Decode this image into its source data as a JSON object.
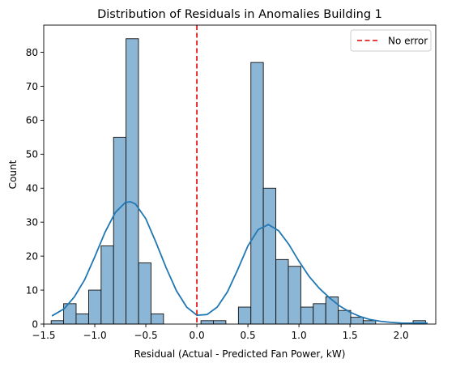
{
  "chart_data": {
    "type": "bar",
    "title": "Distribution of Residuals in Anomalies Building 1",
    "xlabel": "Residual (Actual - Predicted Fan Power, kW)",
    "ylabel": "Count",
    "xlim": [
      -1.5,
      2.34
    ],
    "ylim": [
      0,
      88
    ],
    "xticks": [
      -1.5,
      -1.0,
      -0.5,
      0.0,
      0.5,
      1.0,
      1.5,
      2.0
    ],
    "xtick_labels": [
      "−1.5",
      "−1.0",
      "−0.5",
      "0.0",
      "0.5",
      "1.0",
      "1.5",
      "2.0"
    ],
    "yticks": [
      0,
      10,
      20,
      30,
      40,
      50,
      60,
      70,
      80
    ],
    "ytick_labels": [
      "0",
      "10",
      "20",
      "30",
      "40",
      "50",
      "60",
      "70",
      "80"
    ],
    "bin_width": 0.1222,
    "bins": [
      {
        "x0": -1.427,
        "count": 1
      },
      {
        "x0": -1.305,
        "count": 6
      },
      {
        "x0": -1.183,
        "count": 3
      },
      {
        "x0": -1.06,
        "count": 10
      },
      {
        "x0": -0.938,
        "count": 23
      },
      {
        "x0": -0.816,
        "count": 55
      },
      {
        "x0": -0.694,
        "count": 84
      },
      {
        "x0": -0.571,
        "count": 18
      },
      {
        "x0": -0.449,
        "count": 3
      },
      {
        "x0": 0.04,
        "count": 1
      },
      {
        "x0": 0.162,
        "count": 1
      },
      {
        "x0": 0.407,
        "count": 5
      },
      {
        "x0": 0.529,
        "count": 77
      },
      {
        "x0": 0.651,
        "count": 40
      },
      {
        "x0": 0.774,
        "count": 19
      },
      {
        "x0": 0.896,
        "count": 17
      },
      {
        "x0": 1.018,
        "count": 5
      },
      {
        "x0": 1.14,
        "count": 6
      },
      {
        "x0": 1.263,
        "count": 8
      },
      {
        "x0": 1.385,
        "count": 4
      },
      {
        "x0": 1.507,
        "count": 2
      },
      {
        "x0": 1.629,
        "count": 1
      },
      {
        "x0": 2.118,
        "count": 1
      }
    ],
    "kde": {
      "x": [
        -1.42,
        -1.3,
        -1.2,
        -1.1,
        -1.0,
        -0.9,
        -0.8,
        -0.7,
        -0.65,
        -0.6,
        -0.5,
        -0.4,
        -0.3,
        -0.2,
        -0.1,
        0.0,
        0.1,
        0.2,
        0.3,
        0.4,
        0.5,
        0.6,
        0.7,
        0.8,
        0.9,
        1.0,
        1.1,
        1.2,
        1.3,
        1.4,
        1.5,
        1.6,
        1.7,
        1.8,
        1.9,
        2.0,
        2.1,
        2.2,
        2.26
      ],
      "y": [
        2.4,
        4.5,
        8.0,
        13.0,
        19.8,
        27.0,
        32.8,
        35.8,
        36.0,
        35.3,
        31.0,
        24.0,
        16.5,
        9.8,
        5.0,
        2.6,
        2.8,
        5.0,
        9.5,
        16.0,
        23.0,
        27.8,
        29.3,
        27.5,
        23.5,
        18.5,
        14.0,
        10.5,
        7.7,
        5.3,
        3.5,
        2.2,
        1.3,
        0.8,
        0.5,
        0.3,
        0.25,
        0.25,
        0.3
      ],
      "color": "#1f77b4"
    },
    "reference_line": {
      "x": 0.0,
      "label": "No error",
      "color": "#e00000",
      "style": "dashed"
    },
    "legend": {
      "position": "top-right",
      "entries": [
        "No error"
      ]
    },
    "bar_fill": "#8cb6d6",
    "bar_edge": "#111111",
    "grid": false
  }
}
